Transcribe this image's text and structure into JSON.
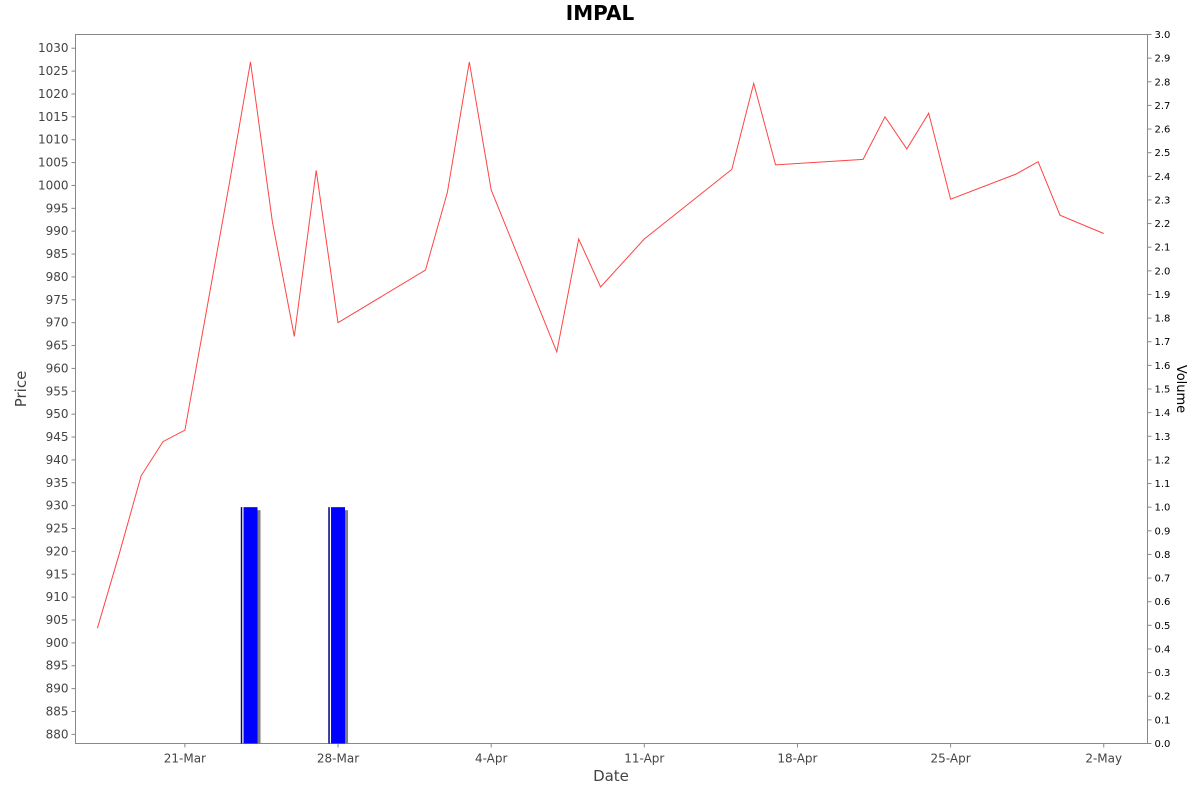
{
  "chart_data": {
    "type": "line",
    "title": "IMPAL",
    "xlabel": "Date",
    "ylabel": "Price",
    "y2label": "Volume",
    "xlim": [
      "2024-03-16",
      "2024-05-04"
    ],
    "ylim": [
      878,
      1033
    ],
    "y2lim": [
      0,
      3.0
    ],
    "grid": false,
    "x_ticks": [
      {
        "date": "2024-03-21",
        "label": "21-Mar"
      },
      {
        "date": "2024-03-28",
        "label": "28-Mar"
      },
      {
        "date": "2024-04-04",
        "label": "4-Apr"
      },
      {
        "date": "2024-04-11",
        "label": "11-Apr"
      },
      {
        "date": "2024-04-18",
        "label": "18-Apr"
      },
      {
        "date": "2024-04-25",
        "label": "25-Apr"
      },
      {
        "date": "2024-05-02",
        "label": "2-May"
      }
    ],
    "y_ticks": [
      880,
      885,
      890,
      895,
      900,
      905,
      910,
      915,
      920,
      925,
      930,
      935,
      940,
      945,
      950,
      955,
      960,
      965,
      970,
      975,
      980,
      985,
      990,
      995,
      1000,
      1005,
      1010,
      1015,
      1020,
      1025,
      1030
    ],
    "y2_ticks": [
      "0.0",
      "0.1",
      "0.2",
      "0.3",
      "0.4",
      "0.5",
      "0.6",
      "0.7",
      "0.8",
      "0.9",
      "1.0",
      "1.1",
      "1.2",
      "1.3",
      "1.4",
      "1.5",
      "1.6",
      "1.7",
      "1.8",
      "1.9",
      "2.0",
      "2.1",
      "2.2",
      "2.3",
      "2.4",
      "2.5",
      "2.6",
      "2.7",
      "2.8",
      "2.9",
      "3.0"
    ],
    "series": [
      {
        "name": "",
        "kind": "line",
        "color": "#ff4444",
        "points": [
          {
            "x": "2024-03-17",
            "y": 903.2
          },
          {
            "x": "2024-03-18",
            "y": 919.5
          },
          {
            "x": "2024-03-19",
            "y": 936.5
          },
          {
            "x": "2024-03-20",
            "y": 944.0
          },
          {
            "x": "2024-03-21",
            "y": 946.5
          },
          {
            "x": "2024-03-22",
            "y": 973.0
          },
          {
            "x": "2024-03-23",
            "y": 999.5
          },
          {
            "x": "2024-03-24",
            "y": 1027.0
          },
          {
            "x": "2024-03-25",
            "y": 992.0
          },
          {
            "x": "2024-03-26",
            "y": 967.0
          },
          {
            "x": "2024-03-27",
            "y": 1003.3
          },
          {
            "x": "2024-03-28",
            "y": 970.0
          },
          {
            "x": "2024-04-01",
            "y": 981.5
          },
          {
            "x": "2024-04-02",
            "y": 998.5
          },
          {
            "x": "2024-04-03",
            "y": 1027.0
          },
          {
            "x": "2024-04-04",
            "y": 999.0
          },
          {
            "x": "2024-04-07",
            "y": 963.6
          },
          {
            "x": "2024-04-08",
            "y": 988.3
          },
          {
            "x": "2024-04-09",
            "y": 977.8
          },
          {
            "x": "2024-04-11",
            "y": 988.3
          },
          {
            "x": "2024-04-15",
            "y": 1003.5
          },
          {
            "x": "2024-04-16",
            "y": 1022.3
          },
          {
            "x": "2024-04-17",
            "y": 1004.5
          },
          {
            "x": "2024-04-21",
            "y": 1005.7
          },
          {
            "x": "2024-04-22",
            "y": 1015.0
          },
          {
            "x": "2024-04-23",
            "y": 1008.0
          },
          {
            "x": "2024-04-24",
            "y": 1015.8
          },
          {
            "x": "2024-04-25",
            "y": 997.0
          },
          {
            "x": "2024-04-28",
            "y": 1002.5
          },
          {
            "x": "2024-04-29",
            "y": 1005.2
          },
          {
            "x": "2024-04-30",
            "y": 993.5
          },
          {
            "x": "2024-05-02",
            "y": 989.5
          }
        ]
      },
      {
        "name": "",
        "kind": "bar",
        "axis": "y2",
        "color": "#0000ff",
        "shadow": "#808080",
        "points": [
          {
            "x": "2024-03-24",
            "y": 1.0
          },
          {
            "x": "2024-03-28",
            "y": 1.0
          }
        ]
      }
    ]
  }
}
